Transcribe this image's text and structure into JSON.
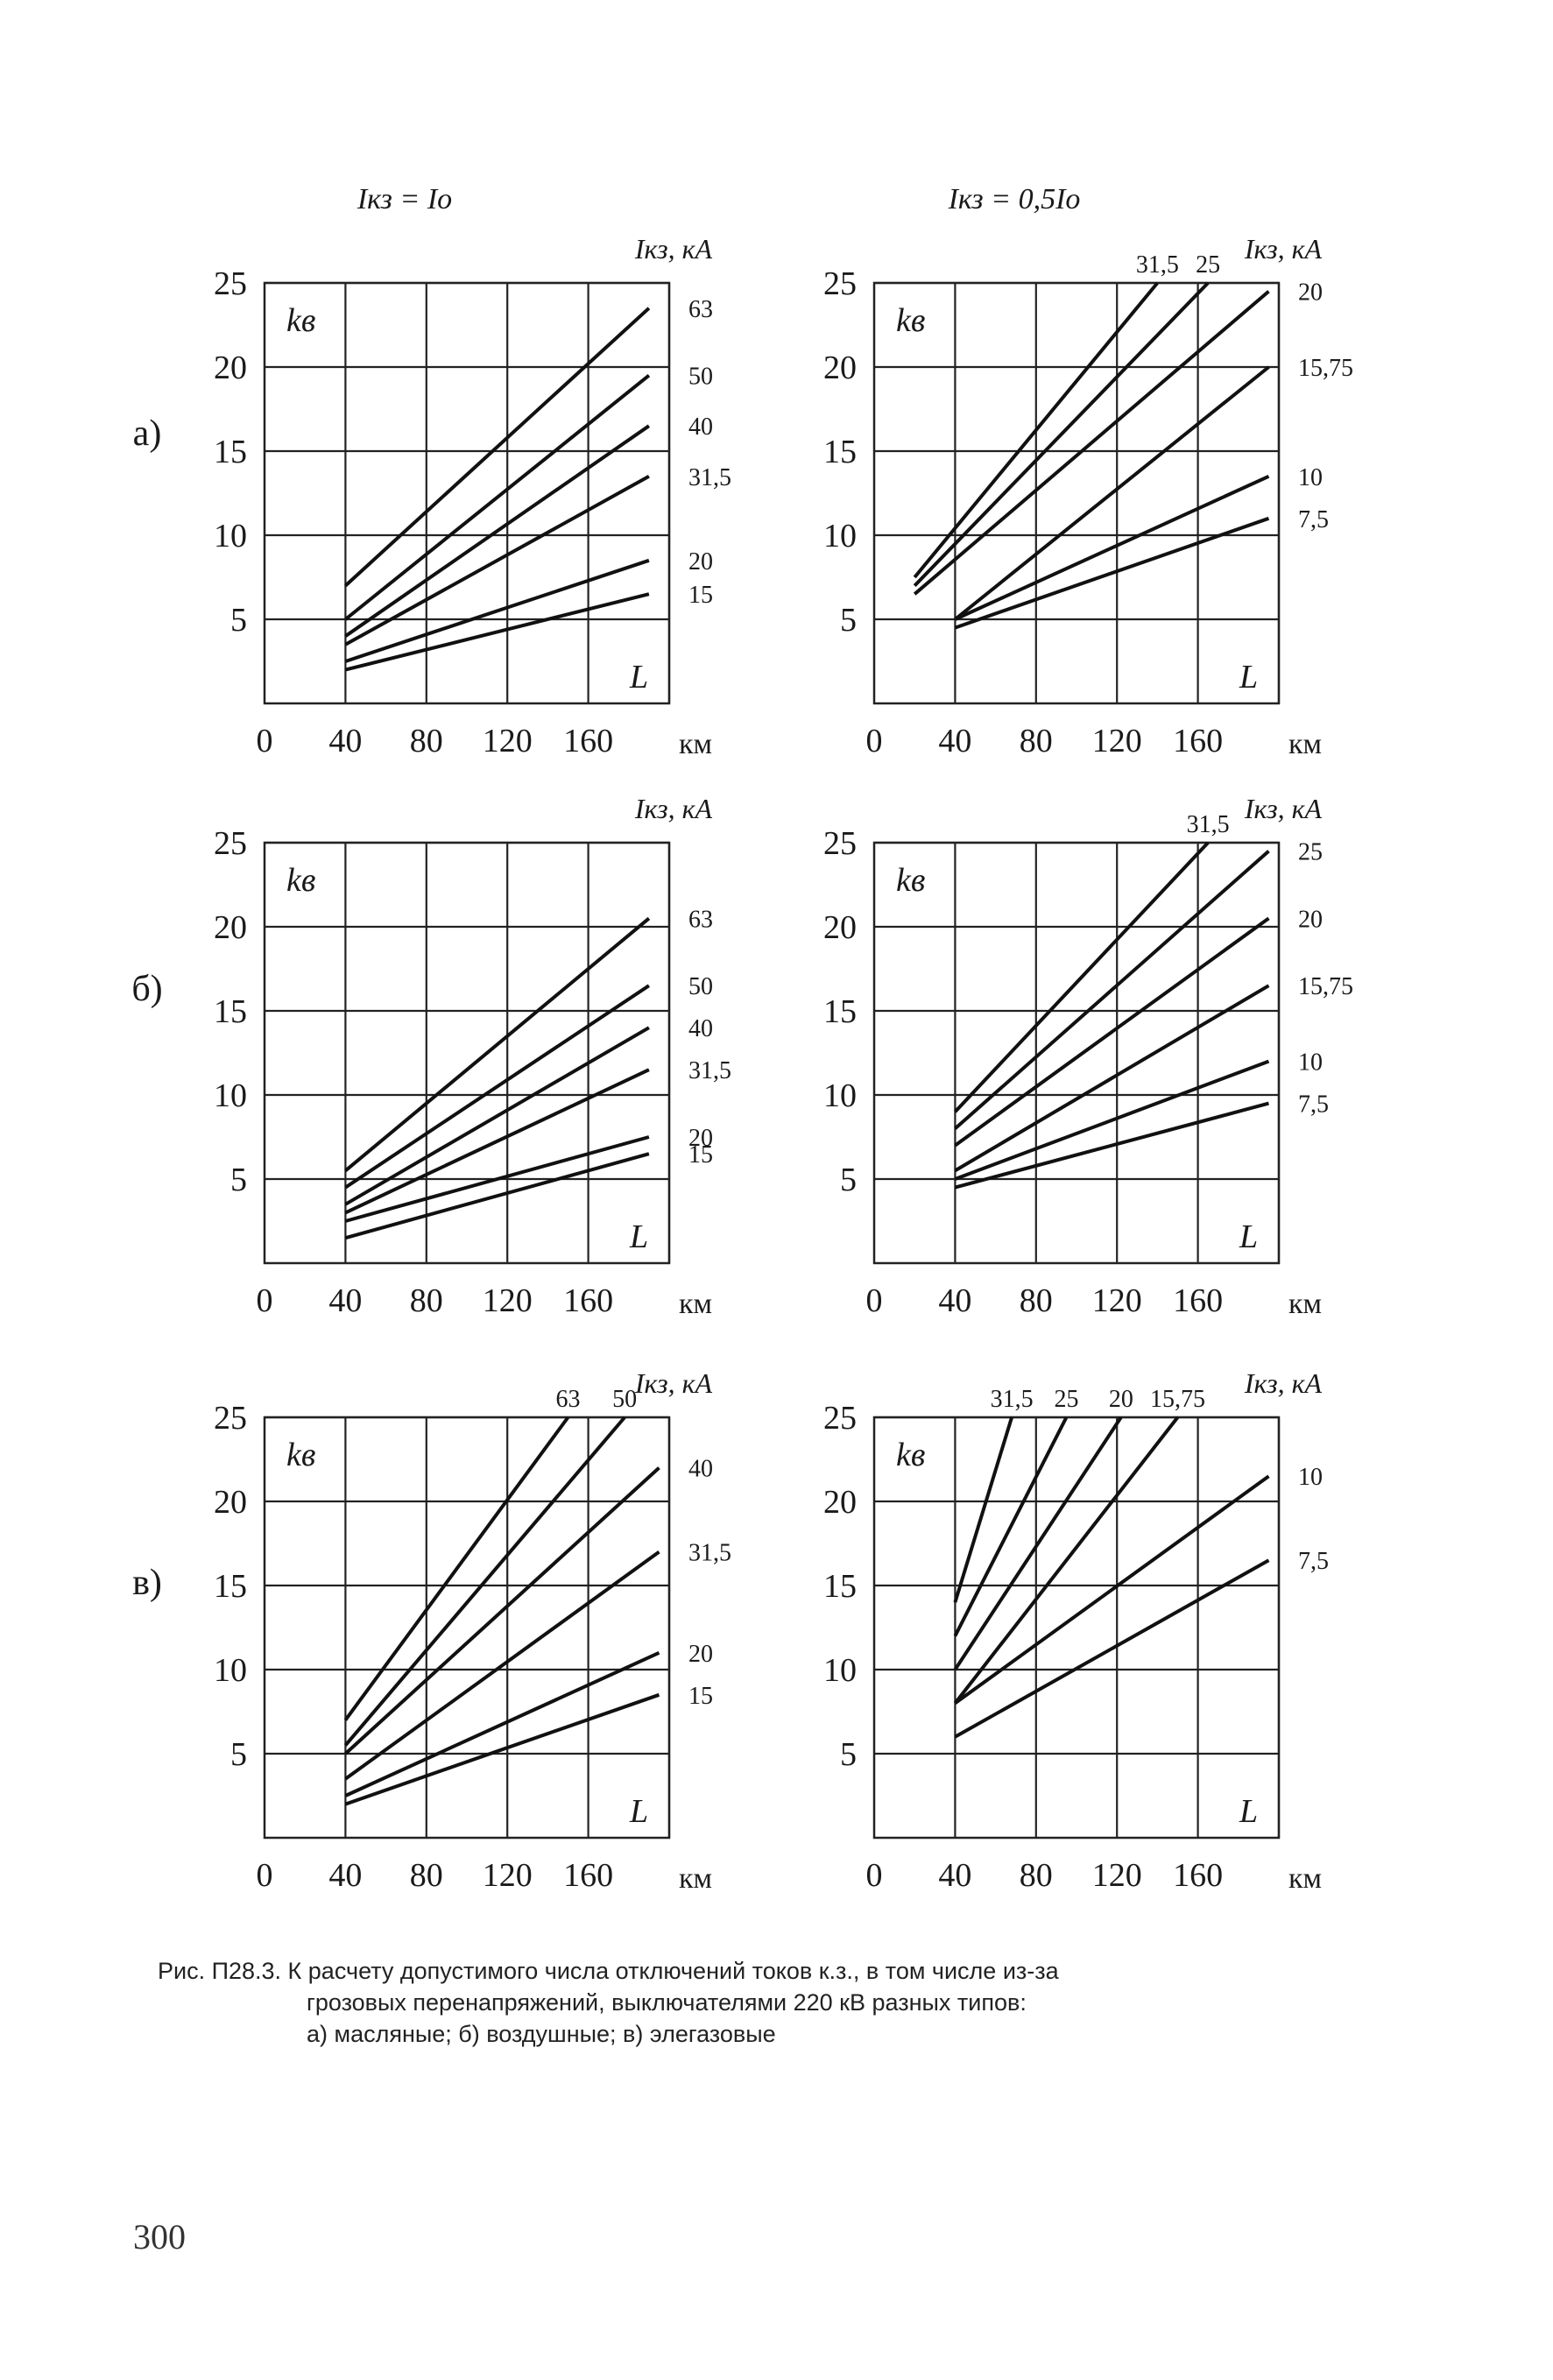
{
  "rows": [
    {
      "label": "а)"
    },
    {
      "label": "б)"
    },
    {
      "label": "в)"
    }
  ],
  "caption": {
    "line1": "Рис. П28.3. К расчету допустимого числа отключений токов к.з., в том числе из-за",
    "line2": "грозовых перенапряжений, выключателями 220 кВ разных типов:",
    "line3": "а) масляные; б) воздушные; в) элегазовые"
  },
  "page_number": "300",
  "chart_data": [
    {
      "id": "a-left",
      "type": "line",
      "title": "Iкз = Iо",
      "xlabel": "L",
      "x_unit": "км",
      "ylabel": "kв",
      "current_label": "Iкз, кА",
      "xlim": [
        0,
        200
      ],
      "ylim": [
        0,
        25
      ],
      "x_ticks": [
        0,
        40,
        80,
        120,
        160
      ],
      "y_ticks": [
        5,
        10,
        15,
        20,
        25
      ],
      "grid": true,
      "series": [
        {
          "name": "63",
          "x": [
            40,
            190
          ],
          "y": [
            7.0,
            23.5
          ],
          "label_pos": "right"
        },
        {
          "name": "50",
          "x": [
            40,
            190
          ],
          "y": [
            5.0,
            19.5
          ],
          "label_pos": "right"
        },
        {
          "name": "40",
          "x": [
            40,
            190
          ],
          "y": [
            4.0,
            16.5
          ],
          "label_pos": "right"
        },
        {
          "name": "31,5",
          "x": [
            40,
            190
          ],
          "y": [
            3.5,
            13.5
          ],
          "label_pos": "right"
        },
        {
          "name": "20",
          "x": [
            40,
            190
          ],
          "y": [
            2.5,
            8.5
          ],
          "label_pos": "right"
        },
        {
          "name": "15",
          "x": [
            40,
            190
          ],
          "y": [
            2.0,
            6.5
          ],
          "label_pos": "right"
        }
      ]
    },
    {
      "id": "a-right",
      "type": "line",
      "title": "Iкз = 0,5Iо",
      "xlabel": "L",
      "x_unit": "км",
      "ylabel": "kв",
      "current_label": "Iкз, кА",
      "xlim": [
        0,
        200
      ],
      "ylim": [
        0,
        25
      ],
      "x_ticks": [
        0,
        40,
        80,
        120,
        160
      ],
      "y_ticks": [
        5,
        10,
        15,
        20,
        25
      ],
      "grid": true,
      "series": [
        {
          "name": "31,5",
          "x": [
            20,
            140
          ],
          "y": [
            7.5,
            25.0
          ],
          "label_pos": "top"
        },
        {
          "name": "25",
          "x": [
            20,
            165
          ],
          "y": [
            7.0,
            25.0
          ],
          "label_pos": "top"
        },
        {
          "name": "20",
          "x": [
            20,
            195
          ],
          "y": [
            6.5,
            24.5
          ],
          "label_pos": "right"
        },
        {
          "name": "15,75",
          "x": [
            40,
            195
          ],
          "y": [
            5.0,
            20.0
          ],
          "label_pos": "right"
        },
        {
          "name": "10",
          "x": [
            40,
            195
          ],
          "y": [
            5.0,
            13.5
          ],
          "label_pos": "right"
        },
        {
          "name": "7,5",
          "x": [
            40,
            195
          ],
          "y": [
            4.5,
            11.0
          ],
          "label_pos": "right"
        }
      ]
    },
    {
      "id": "b-left",
      "type": "line",
      "title": "",
      "xlabel": "L",
      "x_unit": "км",
      "ylabel": "kв",
      "current_label": "Iкз, кА",
      "xlim": [
        0,
        200
      ],
      "ylim": [
        0,
        25
      ],
      "x_ticks": [
        0,
        40,
        80,
        120,
        160
      ],
      "y_ticks": [
        5,
        10,
        15,
        20,
        25
      ],
      "grid": true,
      "series": [
        {
          "name": "63",
          "x": [
            40,
            190
          ],
          "y": [
            5.5,
            20.5
          ],
          "label_pos": "right"
        },
        {
          "name": "50",
          "x": [
            40,
            190
          ],
          "y": [
            4.5,
            16.5
          ],
          "label_pos": "right"
        },
        {
          "name": "40",
          "x": [
            40,
            190
          ],
          "y": [
            3.5,
            14.0
          ],
          "label_pos": "right"
        },
        {
          "name": "31,5",
          "x": [
            40,
            190
          ],
          "y": [
            3.0,
            11.5
          ],
          "label_pos": "right"
        },
        {
          "name": "20",
          "x": [
            40,
            190
          ],
          "y": [
            2.5,
            7.5
          ],
          "label_pos": "right"
        },
        {
          "name": "15",
          "x": [
            40,
            190
          ],
          "y": [
            1.5,
            6.5
          ],
          "label_pos": "right"
        }
      ]
    },
    {
      "id": "b-right",
      "type": "line",
      "title": "",
      "xlabel": "L",
      "x_unit": "км",
      "ylabel": "kв",
      "current_label": "Iкз, кА",
      "xlim": [
        0,
        200
      ],
      "ylim": [
        0,
        25
      ],
      "x_ticks": [
        0,
        40,
        80,
        120,
        160
      ],
      "y_ticks": [
        5,
        10,
        15,
        20,
        25
      ],
      "grid": true,
      "series": [
        {
          "name": "31,5",
          "x": [
            40,
            165
          ],
          "y": [
            9.0,
            25.0
          ],
          "label_pos": "top"
        },
        {
          "name": "25",
          "x": [
            40,
            195
          ],
          "y": [
            8.0,
            24.5
          ],
          "label_pos": "right"
        },
        {
          "name": "20",
          "x": [
            40,
            195
          ],
          "y": [
            7.0,
            20.5
          ],
          "label_pos": "right"
        },
        {
          "name": "15,75",
          "x": [
            40,
            195
          ],
          "y": [
            5.5,
            16.5
          ],
          "label_pos": "right"
        },
        {
          "name": "10",
          "x": [
            40,
            195
          ],
          "y": [
            5.0,
            12.0
          ],
          "label_pos": "right"
        },
        {
          "name": "7,5",
          "x": [
            40,
            195
          ],
          "y": [
            4.5,
            9.5
          ],
          "label_pos": "right"
        }
      ]
    },
    {
      "id": "c-left",
      "type": "line",
      "title": "",
      "xlabel": "L",
      "x_unit": "км",
      "ylabel": "kв",
      "current_label": "Iкз, кА",
      "xlim": [
        0,
        200
      ],
      "ylim": [
        0,
        25
      ],
      "x_ticks": [
        0,
        40,
        80,
        120,
        160
      ],
      "y_ticks": [
        5,
        10,
        15,
        20,
        25
      ],
      "grid": true,
      "series": [
        {
          "name": "63",
          "x": [
            40,
            150
          ],
          "y": [
            7.0,
            25.0
          ],
          "label_pos": "top"
        },
        {
          "name": "50",
          "x": [
            40,
            178
          ],
          "y": [
            5.5,
            25.0
          ],
          "label_pos": "top"
        },
        {
          "name": "40",
          "x": [
            40,
            195
          ],
          "y": [
            5.0,
            22.0
          ],
          "label_pos": "right"
        },
        {
          "name": "31,5",
          "x": [
            40,
            195
          ],
          "y": [
            3.5,
            17.0
          ],
          "label_pos": "right"
        },
        {
          "name": "20",
          "x": [
            40,
            195
          ],
          "y": [
            2.5,
            11.0
          ],
          "label_pos": "right"
        },
        {
          "name": "15",
          "x": [
            40,
            195
          ],
          "y": [
            2.0,
            8.5
          ],
          "label_pos": "right"
        }
      ]
    },
    {
      "id": "c-right",
      "type": "line",
      "title": "",
      "xlabel": "L",
      "x_unit": "км",
      "ylabel": "kв",
      "current_label": "Iкз, кА",
      "xlim": [
        0,
        200
      ],
      "ylim": [
        0,
        25
      ],
      "x_ticks": [
        0,
        40,
        80,
        120,
        160
      ],
      "y_ticks": [
        5,
        10,
        15,
        20,
        25
      ],
      "grid": true,
      "series": [
        {
          "name": "31,5",
          "x": [
            40,
            68
          ],
          "y": [
            14.0,
            25.0
          ],
          "label_pos": "top"
        },
        {
          "name": "25",
          "x": [
            40,
            95
          ],
          "y": [
            12.0,
            25.0
          ],
          "label_pos": "top"
        },
        {
          "name": "20",
          "x": [
            40,
            122
          ],
          "y": [
            10.0,
            25.0
          ],
          "label_pos": "top"
        },
        {
          "name": "15,75",
          "x": [
            40,
            150
          ],
          "y": [
            8.0,
            25.0
          ],
          "label_pos": "top"
        },
        {
          "name": "10",
          "x": [
            40,
            195
          ],
          "y": [
            8.0,
            21.5
          ],
          "label_pos": "right"
        },
        {
          "name": "7,5",
          "x": [
            40,
            195
          ],
          "y": [
            6.0,
            16.5
          ],
          "label_pos": "right"
        }
      ]
    }
  ]
}
